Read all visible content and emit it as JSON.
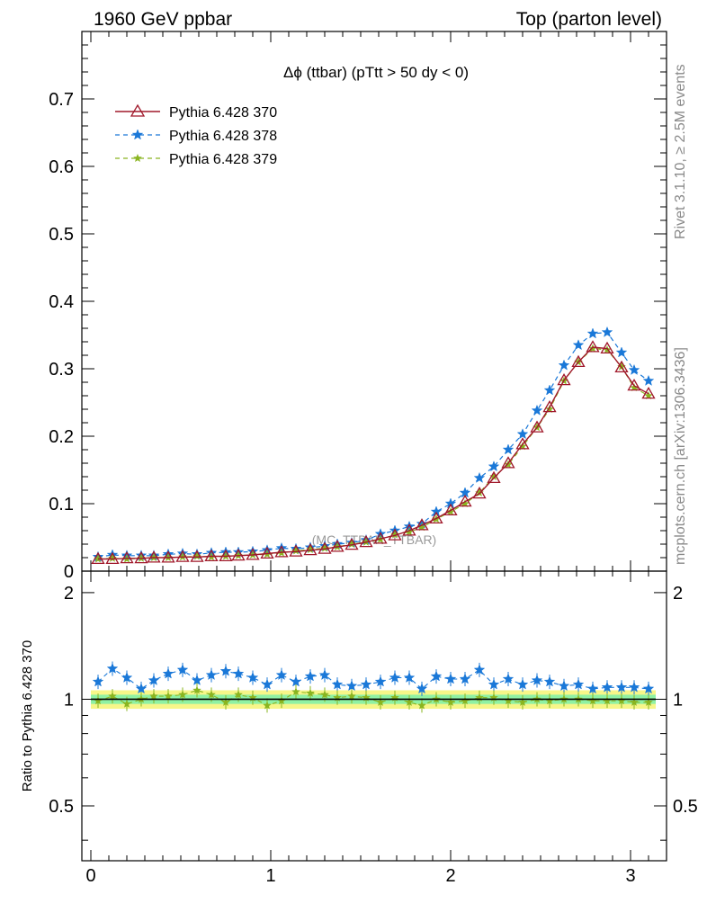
{
  "header": {
    "left": "1960 GeV ppbar",
    "right": "Top (parton level)"
  },
  "side": {
    "rivet": "Rivet 3.1.10, ≥ 2.5M events",
    "mcplots": "mcplots.cern.ch [arXiv:1306.3436]"
  },
  "chart_data": {
    "type": "line",
    "title": "Δϕ (ttbar) (pTtt > 50 dy < 0)",
    "watermark": "(MC_TTBAR_TTBAR)",
    "xlim": [
      -0.05,
      3.2
    ],
    "main": {
      "ylim": [
        0,
        0.8
      ],
      "yticks": [
        "0",
        "0.1",
        "0.2",
        "0.3",
        "0.4",
        "0.5",
        "0.6",
        "0.7"
      ]
    },
    "ratio": {
      "ylabel": "Ratio to Pythia 6.428 370",
      "ylim": [
        0.35,
        2.3
      ],
      "yticks": [
        "0.5",
        "1",
        "2"
      ]
    },
    "xticks": [
      "0",
      "1",
      "2",
      "3"
    ],
    "colors": {
      "s370": "#a0182a",
      "s378": "#1a78d8",
      "s379": "#8ab520"
    },
    "x": [
      0.04,
      0.12,
      0.2,
      0.28,
      0.35,
      0.43,
      0.51,
      0.59,
      0.67,
      0.75,
      0.82,
      0.9,
      0.98,
      1.06,
      1.14,
      1.22,
      1.3,
      1.37,
      1.45,
      1.53,
      1.61,
      1.69,
      1.77,
      1.84,
      1.92,
      2.0,
      2.08,
      2.16,
      2.24,
      2.32,
      2.4,
      2.48,
      2.55,
      2.63,
      2.71,
      2.79,
      2.87,
      2.95,
      3.02,
      3.1
    ],
    "series": [
      {
        "name": "Pythia 6.428 370",
        "style": "solid-open-triangle",
        "values": [
          0.018,
          0.018,
          0.019,
          0.019,
          0.02,
          0.02,
          0.021,
          0.021,
          0.022,
          0.022,
          0.023,
          0.024,
          0.026,
          0.028,
          0.029,
          0.031,
          0.033,
          0.036,
          0.039,
          0.043,
          0.048,
          0.053,
          0.06,
          0.068,
          0.078,
          0.09,
          0.103,
          0.115,
          0.138,
          0.16,
          0.188,
          0.213,
          0.243,
          0.283,
          0.31,
          0.332,
          0.33,
          0.302,
          0.275,
          0.263
        ],
        "ratio": [
          1.0,
          1.0,
          1.0,
          1.0,
          1.0,
          1.0,
          1.0,
          1.0,
          1.0,
          1.0,
          1.0,
          1.0,
          1.0,
          1.0,
          1.0,
          1.0,
          1.0,
          1.0,
          1.0,
          1.0,
          1.0,
          1.0,
          1.0,
          1.0,
          1.0,
          1.0,
          1.0,
          1.0,
          1.0,
          1.0,
          1.0,
          1.0,
          1.0,
          1.0,
          1.0,
          1.0,
          1.0,
          1.0,
          1.0,
          1.0
        ]
      },
      {
        "name": "Pythia 6.428 378",
        "style": "dashed-star",
        "values": [
          0.021,
          0.024,
          0.023,
          0.023,
          0.023,
          0.025,
          0.026,
          0.025,
          0.027,
          0.028,
          0.028,
          0.029,
          0.031,
          0.034,
          0.033,
          0.035,
          0.037,
          0.04,
          0.042,
          0.046,
          0.055,
          0.06,
          0.066,
          0.07,
          0.088,
          0.1,
          0.116,
          0.138,
          0.155,
          0.18,
          0.203,
          0.238,
          0.268,
          0.305,
          0.335,
          0.352,
          0.354,
          0.324,
          0.298,
          0.282
        ],
        "ratio": [
          1.12,
          1.22,
          1.15,
          1.07,
          1.13,
          1.18,
          1.21,
          1.13,
          1.17,
          1.2,
          1.18,
          1.15,
          1.1,
          1.17,
          1.12,
          1.16,
          1.17,
          1.1,
          1.09,
          1.1,
          1.12,
          1.15,
          1.15,
          1.07,
          1.16,
          1.14,
          1.14,
          1.21,
          1.1,
          1.14,
          1.1,
          1.13,
          1.12,
          1.09,
          1.1,
          1.07,
          1.08,
          1.08,
          1.08,
          1.07
        ]
      },
      {
        "name": "Pythia 6.428 379",
        "style": "dashed-small-star",
        "values": [
          0.018,
          0.019,
          0.018,
          0.019,
          0.02,
          0.02,
          0.021,
          0.022,
          0.021,
          0.022,
          0.023,
          0.024,
          0.025,
          0.027,
          0.03,
          0.032,
          0.034,
          0.036,
          0.04,
          0.043,
          0.047,
          0.054,
          0.058,
          0.065,
          0.077,
          0.088,
          0.1,
          0.116,
          0.14,
          0.158,
          0.185,
          0.213,
          0.24,
          0.282,
          0.31,
          0.33,
          0.328,
          0.303,
          0.272,
          0.26
        ],
        "ratio": [
          0.99,
          1.02,
          0.97,
          1.0,
          1.02,
          1.02,
          1.03,
          1.06,
          1.03,
          0.98,
          1.03,
          1.01,
          0.96,
          0.99,
          1.05,
          1.04,
          1.03,
          1.01,
          1.02,
          1.01,
          0.98,
          1.01,
          0.98,
          0.96,
          1.0,
          0.98,
          0.99,
          1.01,
          1.01,
          0.99,
          0.98,
          1.0,
          0.99,
          1.0,
          1.0,
          0.99,
          0.99,
          0.99,
          0.98,
          0.98
        ]
      }
    ]
  }
}
